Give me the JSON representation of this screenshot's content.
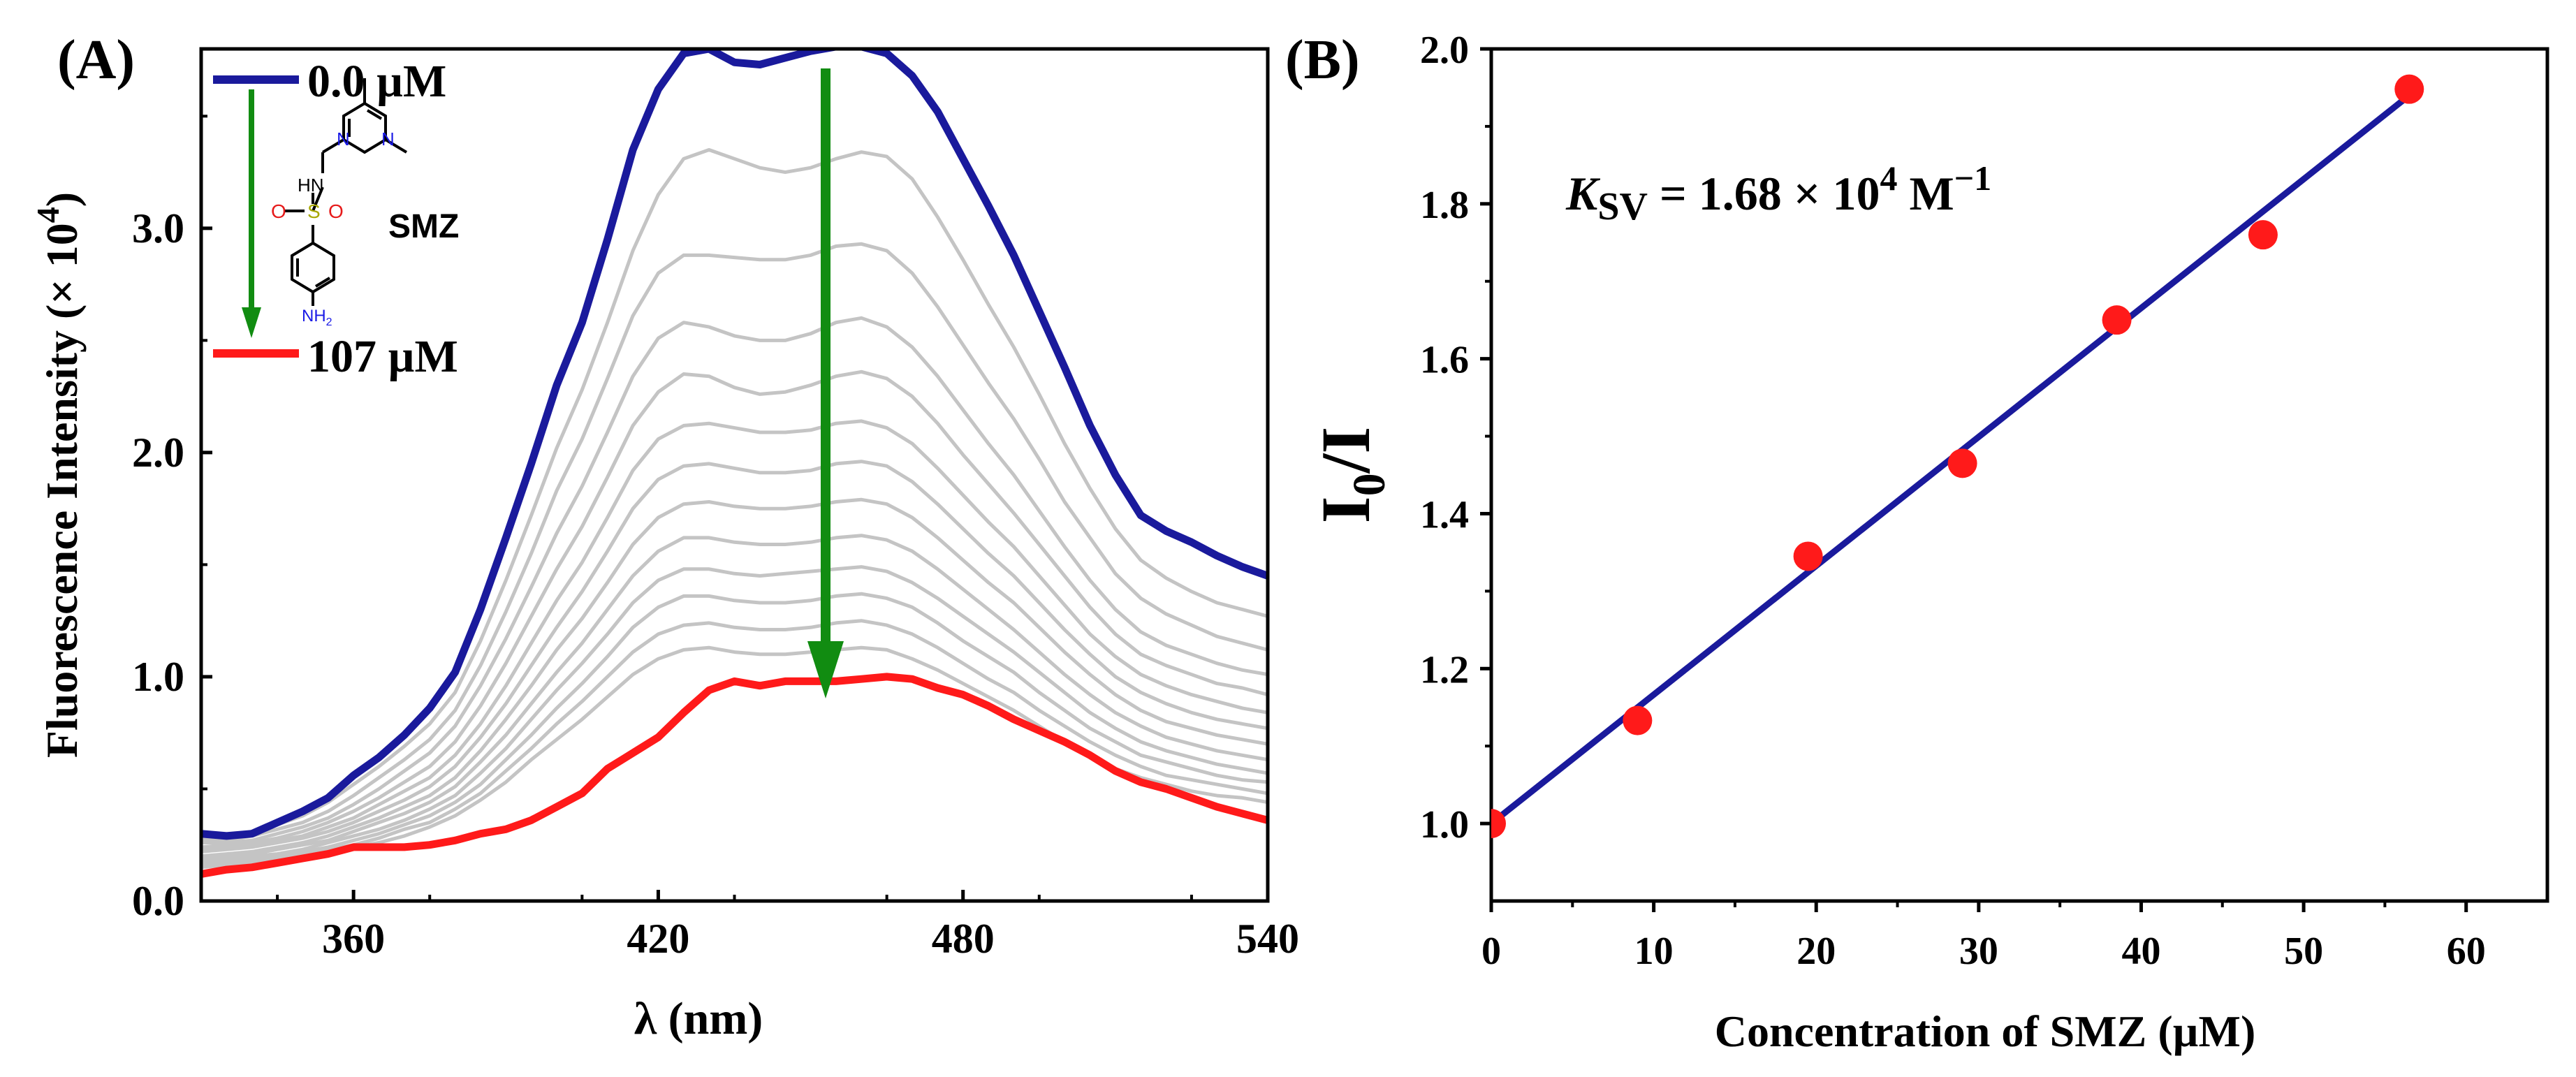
{
  "colors": {
    "top_curve": "#1a1a9c",
    "bottom_curve": "#ff1a1a",
    "mid_curves": "#c4c4c4",
    "arrow": "#118c11",
    "fit_line": "#1a1a9c",
    "points": "#ff1a1a",
    "struct_N": "#1a1ae6",
    "struct_O": "#e61a1a",
    "struct_S": "#a8a800"
  },
  "panelA": {
    "label": "(A)",
    "legend_top": "0.0 µM",
    "legend_bottom": "107 µM",
    "compound": "SMZ",
    "struct_atoms": {
      "hn": "HN",
      "nh2": "NH",
      "nh2_sub": "2",
      "s": "S",
      "o": "O",
      "n": "N"
    },
    "xlabel": "λ (nm)",
    "ylabel_main": "Fluorescence Intensity (× 10",
    "ylabel_sup": "4",
    "ylabel_close": ")"
  },
  "panelB": {
    "label": "(B)",
    "ylabel_main": "I",
    "ylabel_sub": "0",
    "ylabel_rest": "/I",
    "xlabel": "Concentration of SMZ (µM)",
    "ksv_k": "K",
    "ksv_sub": "SV",
    "ksv_mid": " = 1.68 × 10",
    "ksv_sup": "4",
    "ksv_unit": " M",
    "ksv_unit_sup": "−1"
  },
  "chart_data": [
    {
      "type": "line",
      "xlabel": "λ (nm)",
      "ylabel": "Fluorescence Intensity (× 10^4)",
      "xlim": [
        330,
        540
      ],
      "ylim": [
        0,
        3.8
      ],
      "x_ticks": [
        360,
        420,
        480,
        540
      ],
      "x_tick_labels": [
        "360",
        "420",
        "480",
        "540"
      ],
      "y_ticks": [
        0.0,
        1.0,
        2.0,
        3.0
      ],
      "y_tick_labels": [
        "0.0",
        "1.0",
        "2.0",
        "3.0"
      ],
      "x": [
        330,
        335,
        340,
        345,
        350,
        355,
        360,
        365,
        370,
        375,
        380,
        385,
        390,
        395,
        400,
        405,
        410,
        415,
        420,
        425,
        430,
        435,
        440,
        445,
        450,
        455,
        460,
        465,
        470,
        475,
        480,
        485,
        490,
        495,
        500,
        505,
        510,
        515,
        520,
        525,
        530,
        535,
        540
      ],
      "series": [
        {
          "name": "0.0 µM",
          "role": "top",
          "values": [
            0.3,
            0.29,
            0.3,
            0.35,
            0.4,
            0.46,
            0.56,
            0.64,
            0.74,
            0.86,
            1.02,
            1.3,
            1.62,
            1.95,
            2.3,
            2.58,
            2.95,
            3.35,
            3.62,
            3.78,
            3.8,
            3.74,
            3.73,
            3.76,
            3.79,
            3.81,
            3.81,
            3.78,
            3.68,
            3.52,
            3.31,
            3.1,
            2.88,
            2.63,
            2.38,
            2.12,
            1.9,
            1.72,
            1.65,
            1.6,
            1.54,
            1.49,
            1.45
          ]
        },
        {
          "role": "mid",
          "values": [
            0.28,
            0.29,
            0.31,
            0.34,
            0.38,
            0.44,
            0.52,
            0.6,
            0.69,
            0.79,
            0.93,
            1.16,
            1.43,
            1.72,
            2.02,
            2.28,
            2.58,
            2.9,
            3.15,
            3.31,
            3.35,
            3.31,
            3.27,
            3.25,
            3.27,
            3.31,
            3.34,
            3.32,
            3.22,
            3.05,
            2.86,
            2.66,
            2.47,
            2.26,
            2.04,
            1.84,
            1.66,
            1.52,
            1.44,
            1.38,
            1.33,
            1.3,
            1.27
          ]
        },
        {
          "role": "mid",
          "values": [
            0.27,
            0.27,
            0.29,
            0.32,
            0.35,
            0.4,
            0.47,
            0.55,
            0.63,
            0.72,
            0.85,
            1.05,
            1.29,
            1.55,
            1.83,
            2.06,
            2.33,
            2.61,
            2.8,
            2.88,
            2.88,
            2.87,
            2.86,
            2.86,
            2.88,
            2.92,
            2.93,
            2.9,
            2.8,
            2.65,
            2.48,
            2.31,
            2.15,
            1.97,
            1.78,
            1.62,
            1.46,
            1.35,
            1.28,
            1.23,
            1.18,
            1.15,
            1.12
          ]
        },
        {
          "role": "mid",
          "values": [
            0.26,
            0.26,
            0.27,
            0.3,
            0.33,
            0.37,
            0.43,
            0.5,
            0.58,
            0.66,
            0.78,
            0.96,
            1.17,
            1.4,
            1.64,
            1.85,
            2.09,
            2.34,
            2.51,
            2.58,
            2.56,
            2.52,
            2.5,
            2.5,
            2.53,
            2.58,
            2.6,
            2.56,
            2.47,
            2.34,
            2.19,
            2.04,
            1.9,
            1.74,
            1.58,
            1.43,
            1.3,
            1.2,
            1.14,
            1.1,
            1.06,
            1.03,
            1.01
          ]
        },
        {
          "role": "mid",
          "values": [
            0.24,
            0.25,
            0.26,
            0.28,
            0.31,
            0.35,
            0.4,
            0.46,
            0.53,
            0.6,
            0.71,
            0.87,
            1.06,
            1.27,
            1.48,
            1.67,
            1.89,
            2.12,
            2.27,
            2.35,
            2.34,
            2.29,
            2.26,
            2.27,
            2.3,
            2.34,
            2.36,
            2.33,
            2.25,
            2.13,
            1.99,
            1.86,
            1.73,
            1.59,
            1.45,
            1.31,
            1.19,
            1.1,
            1.05,
            1.01,
            0.97,
            0.95,
            0.92
          ]
        },
        {
          "role": "mid",
          "values": [
            0.23,
            0.24,
            0.25,
            0.27,
            0.29,
            0.33,
            0.37,
            0.43,
            0.49,
            0.55,
            0.65,
            0.79,
            0.96,
            1.15,
            1.34,
            1.51,
            1.71,
            1.92,
            2.06,
            2.12,
            2.13,
            2.11,
            2.09,
            2.09,
            2.1,
            2.13,
            2.14,
            2.11,
            2.04,
            1.93,
            1.81,
            1.69,
            1.58,
            1.45,
            1.32,
            1.19,
            1.09,
            1.01,
            0.96,
            0.92,
            0.89,
            0.86,
            0.84
          ]
        },
        {
          "role": "mid",
          "values": [
            0.22,
            0.23,
            0.24,
            0.26,
            0.28,
            0.31,
            0.35,
            0.4,
            0.45,
            0.51,
            0.6,
            0.73,
            0.88,
            1.05,
            1.22,
            1.38,
            1.56,
            1.75,
            1.88,
            1.94,
            1.95,
            1.93,
            1.91,
            1.91,
            1.92,
            1.95,
            1.96,
            1.94,
            1.87,
            1.77,
            1.66,
            1.55,
            1.45,
            1.33,
            1.21,
            1.1,
            1.0,
            0.93,
            0.88,
            0.84,
            0.81,
            0.79,
            0.77
          ]
        },
        {
          "role": "mid",
          "values": [
            0.2,
            0.21,
            0.22,
            0.24,
            0.26,
            0.29,
            0.33,
            0.37,
            0.42,
            0.47,
            0.55,
            0.67,
            0.81,
            0.96,
            1.12,
            1.26,
            1.42,
            1.59,
            1.71,
            1.77,
            1.78,
            1.76,
            1.75,
            1.75,
            1.76,
            1.78,
            1.79,
            1.77,
            1.71,
            1.62,
            1.52,
            1.42,
            1.33,
            1.22,
            1.11,
            1.01,
            0.92,
            0.85,
            0.8,
            0.77,
            0.74,
            0.72,
            0.7
          ]
        },
        {
          "role": "mid",
          "values": [
            0.19,
            0.2,
            0.21,
            0.23,
            0.25,
            0.27,
            0.31,
            0.35,
            0.39,
            0.44,
            0.51,
            0.62,
            0.74,
            0.88,
            1.02,
            1.15,
            1.3,
            1.45,
            1.56,
            1.62,
            1.62,
            1.6,
            1.59,
            1.59,
            1.6,
            1.62,
            1.63,
            1.61,
            1.56,
            1.48,
            1.39,
            1.3,
            1.21,
            1.11,
            1.01,
            0.92,
            0.84,
            0.78,
            0.73,
            0.7,
            0.67,
            0.65,
            0.63
          ]
        },
        {
          "role": "mid",
          "values": [
            0.18,
            0.19,
            0.2,
            0.21,
            0.23,
            0.26,
            0.29,
            0.32,
            0.36,
            0.41,
            0.47,
            0.57,
            0.68,
            0.81,
            0.94,
            1.06,
            1.19,
            1.33,
            1.43,
            1.48,
            1.48,
            1.46,
            1.45,
            1.46,
            1.47,
            1.48,
            1.49,
            1.47,
            1.42,
            1.35,
            1.27,
            1.19,
            1.11,
            1.02,
            0.93,
            0.84,
            0.77,
            0.71,
            0.67,
            0.64,
            0.61,
            0.59,
            0.57
          ]
        },
        {
          "role": "mid",
          "values": [
            0.17,
            0.18,
            0.19,
            0.2,
            0.22,
            0.24,
            0.27,
            0.3,
            0.34,
            0.38,
            0.44,
            0.52,
            0.63,
            0.74,
            0.86,
            0.97,
            1.09,
            1.22,
            1.31,
            1.36,
            1.36,
            1.34,
            1.33,
            1.33,
            1.34,
            1.36,
            1.37,
            1.35,
            1.31,
            1.24,
            1.16,
            1.09,
            1.02,
            0.93,
            0.85,
            0.77,
            0.71,
            0.65,
            0.62,
            0.59,
            0.56,
            0.54,
            0.53
          ]
        },
        {
          "role": "mid",
          "values": [
            0.16,
            0.17,
            0.18,
            0.19,
            0.21,
            0.23,
            0.25,
            0.28,
            0.32,
            0.35,
            0.41,
            0.48,
            0.58,
            0.68,
            0.79,
            0.89,
            1.0,
            1.11,
            1.19,
            1.23,
            1.24,
            1.22,
            1.21,
            1.21,
            1.22,
            1.24,
            1.25,
            1.23,
            1.19,
            1.13,
            1.06,
            0.99,
            0.93,
            0.85,
            0.78,
            0.71,
            0.65,
            0.6,
            0.56,
            0.54,
            0.52,
            0.5,
            0.48
          ]
        },
        {
          "role": "mid",
          "values": [
            0.15,
            0.16,
            0.17,
            0.18,
            0.19,
            0.21,
            0.24,
            0.26,
            0.29,
            0.33,
            0.38,
            0.45,
            0.53,
            0.63,
            0.72,
            0.81,
            0.91,
            1.01,
            1.08,
            1.12,
            1.13,
            1.11,
            1.1,
            1.1,
            1.11,
            1.12,
            1.13,
            1.12,
            1.08,
            1.03,
            0.97,
            0.91,
            0.85,
            0.78,
            0.71,
            0.65,
            0.59,
            0.55,
            0.52,
            0.49,
            0.47,
            0.46,
            0.44
          ]
        },
        {
          "name": "107 µM",
          "role": "bottom",
          "values": [
            0.12,
            0.14,
            0.15,
            0.17,
            0.19,
            0.21,
            0.24,
            0.24,
            0.24,
            0.25,
            0.27,
            0.3,
            0.32,
            0.36,
            0.42,
            0.48,
            0.59,
            0.66,
            0.73,
            0.84,
            0.94,
            0.98,
            0.96,
            0.98,
            0.98,
            0.98,
            0.99,
            1.0,
            0.99,
            0.95,
            0.92,
            0.87,
            0.81,
            0.76,
            0.71,
            0.65,
            0.58,
            0.53,
            0.5,
            0.46,
            0.42,
            0.39,
            0.36
          ]
        }
      ],
      "annotations": [
        "0.0 µM",
        "107 µM",
        "SMZ"
      ]
    },
    {
      "type": "scatter",
      "xlabel": "Concentration of SMZ (µM)",
      "ylabel": "I0/I",
      "xlim": [
        0,
        65
      ],
      "ylim": [
        0.9,
        2.0
      ],
      "x_ticks": [
        0,
        10,
        20,
        30,
        40,
        50,
        60
      ],
      "x_tick_labels": [
        "0",
        "10",
        "20",
        "30",
        "40",
        "50",
        "60"
      ],
      "y_ticks": [
        1.0,
        1.2,
        1.4,
        1.6,
        1.8,
        2.0
      ],
      "y_tick_labels": [
        "1.0",
        "1.2",
        "1.4",
        "1.6",
        "1.8",
        "2.0"
      ],
      "x": [
        0,
        9,
        19.5,
        29,
        38.5,
        47.5,
        56.5
      ],
      "y": [
        1.0,
        1.133,
        1.345,
        1.465,
        1.65,
        1.76,
        1.948
      ],
      "fit": {
        "x": [
          0,
          56.5
        ],
        "y": [
          1.0,
          1.94
        ]
      },
      "annotation": "KSV = 1.68 × 10^4 M^−1"
    }
  ]
}
